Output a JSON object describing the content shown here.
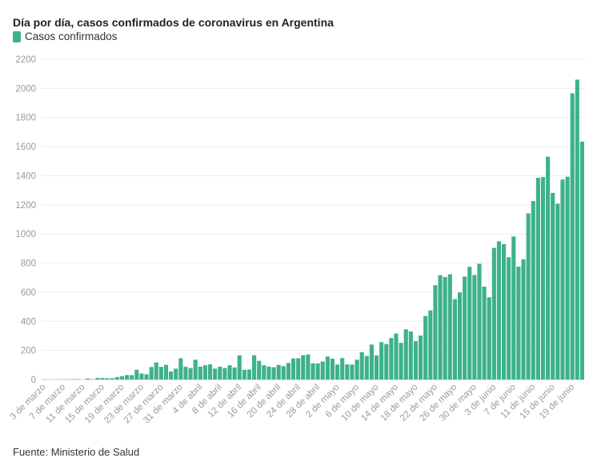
{
  "header": {
    "title": "Día por día, casos confirmados de coronavirus en Argentina"
  },
  "legend": {
    "label": "Casos confirmados",
    "color": "#3db28a"
  },
  "footer": {
    "source": "Fuente: Ministerio de Salud"
  },
  "chart_data": {
    "type": "bar",
    "title": "Día por día, casos confirmados de coronavirus en Argentina",
    "xlabel": "",
    "ylabel": "",
    "ylim": [
      0,
      2200
    ],
    "yticks": [
      0,
      200,
      400,
      600,
      800,
      1000,
      1200,
      1400,
      1600,
      1800,
      2000,
      2200
    ],
    "grid": true,
    "legend_position": "top-left",
    "series": [
      {
        "name": "Casos confirmados",
        "color": "#3db28a",
        "values": [
          1,
          0,
          0,
          0,
          1,
          2,
          3,
          2,
          0,
          7,
          2,
          11,
          10,
          9,
          9,
          17,
          23,
          31,
          30,
          67,
          41,
          36,
          86,
          117,
          87,
          101,
          55,
          75,
          146,
          88,
          79,
          136,
          88,
          98,
          104,
          75,
          88,
          79,
          98,
          83,
          166,
          67,
          69,
          167,
          128,
          98,
          89,
          84,
          101,
          92,
          114,
          145,
          146,
          167,
          172,
          112,
          111,
          124,
          158,
          143,
          103,
          147,
          104,
          103,
          136,
          188,
          162,
          240,
          165,
          257,
          244,
          285,
          316,
          252,
          345,
          330,
          264,
          302,
          436,
          475,
          648,
          717,
          704,
          723,
          552,
          598,
          707,
          774,
          718,
          795,
          638,
          565,
          904,
          949,
          930,
          840,
          983,
          775,
          826,
          1141,
          1226,
          1386,
          1391,
          1531,
          1282,
          1208,
          1374,
          1393,
          1966,
          2060,
          1634
        ]
      }
    ],
    "x_labels": [
      "3 de marzo",
      "7 de marzo",
      "11 de marzo",
      "15 de marzo",
      "19 de marzo",
      "23 de marzo",
      "27 de marzo",
      "31 de marzo",
      "4 de abril",
      "8 de abril",
      "12 de abril",
      "16 de abril",
      "20 de abril",
      "24 de abril",
      "28 de abril",
      "2 de mayo",
      "6 de mayo",
      "10 de mayo",
      "14 de mayo",
      "18 de mayo",
      "22 de mayo",
      "26 de mayo",
      "30 de mayo",
      "3 de junio",
      "7 de junio",
      "11 de junio",
      "15 de junio",
      "19 de junio"
    ],
    "x_label_every_n_days": 4
  }
}
